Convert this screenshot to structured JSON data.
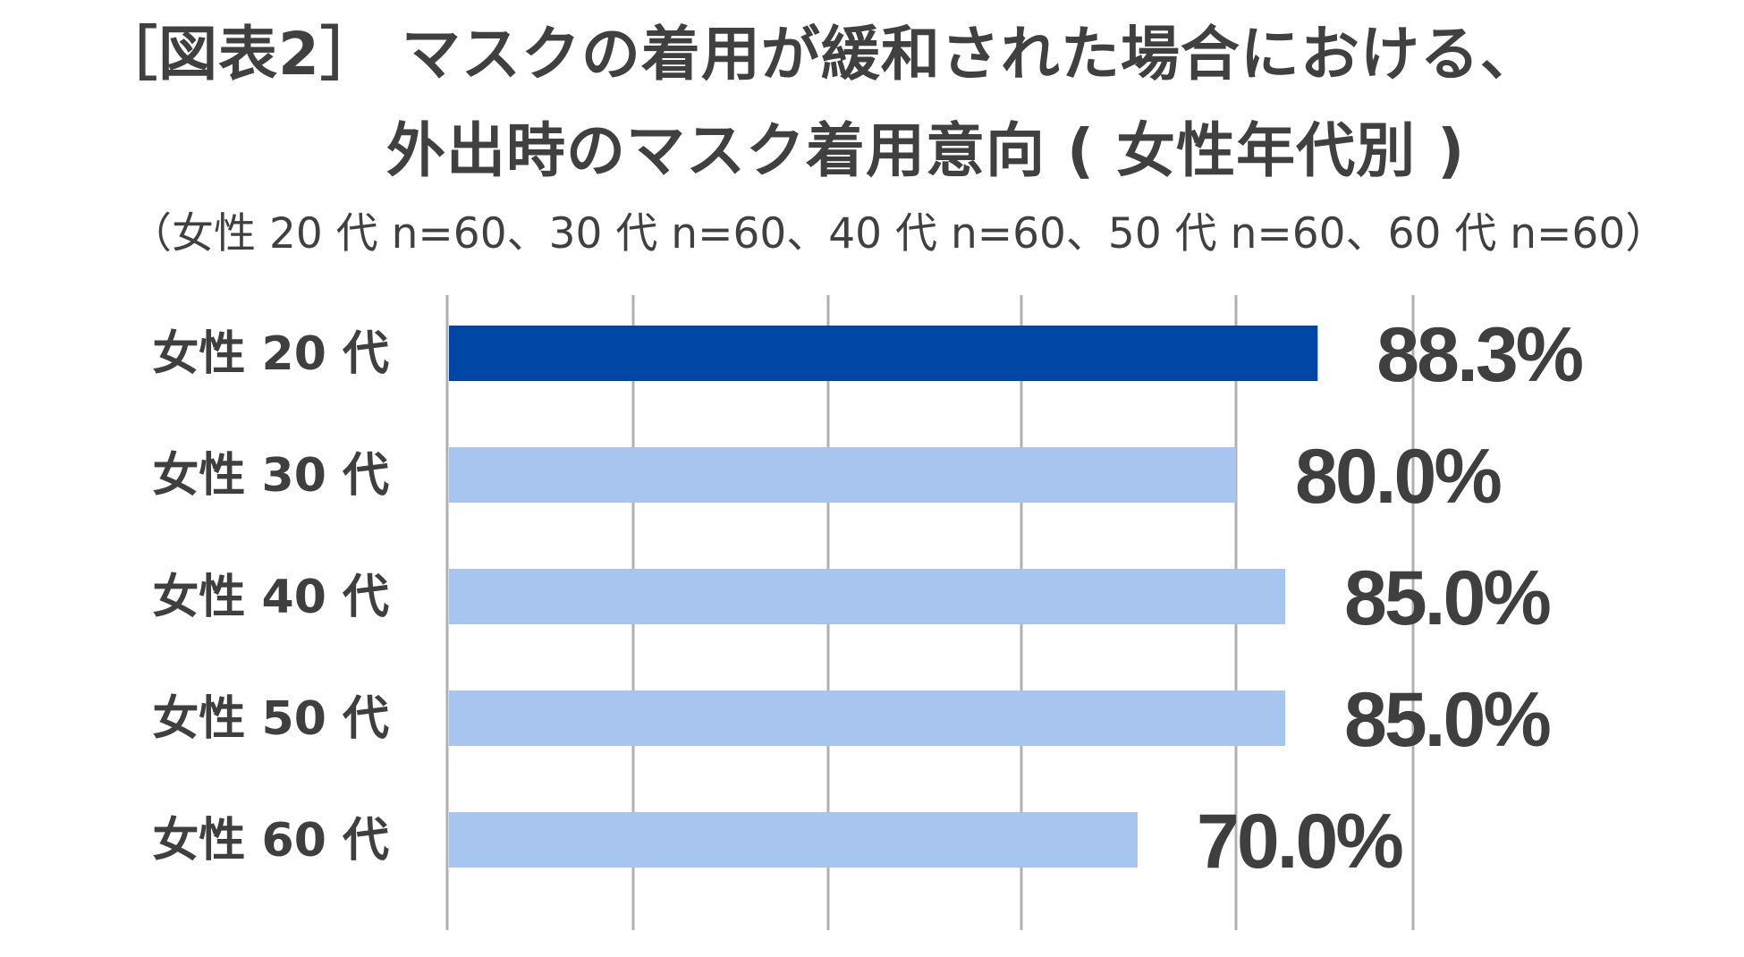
{
  "title": {
    "line1": "［図表2］ マスクの着用が緩和された場合における、",
    "line2": "外出時のマスク着用意向 ( 女性年代別 )"
  },
  "subtitle": "（女性 20 代 n=60、30 代 n=60、40 代 n=60、50 代 n=60、60 代 n=60）",
  "colors": {
    "highlight_bar": "#0046a5",
    "bar": "#a7c5ee",
    "grid": "#b0b0b0",
    "text": "#3f3f3f"
  },
  "chart_data": {
    "type": "bar",
    "orientation": "horizontal",
    "categories": [
      "女性 20 代",
      "女性 30 代",
      "女性 40 代",
      "女性 50 代",
      "女性 60 代"
    ],
    "values": [
      88.3,
      80.0,
      85.0,
      85.0,
      70.0
    ],
    "value_labels": [
      "88.3%",
      "80.0%",
      "85.0%",
      "85.0%",
      "70.0%"
    ],
    "unit": "%",
    "highlight_index": 0,
    "xlim": [
      0,
      100
    ],
    "grid": true,
    "legend": "none"
  }
}
